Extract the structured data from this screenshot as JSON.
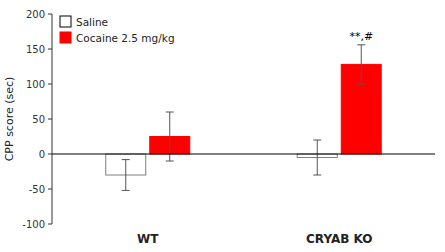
{
  "chart_data": {
    "type": "bar",
    "categories": [
      "WT",
      "CRYAB KO"
    ],
    "series": [
      {
        "name": "Saline",
        "color": "#ffffff",
        "values": [
          -30,
          -5
        ],
        "errors": [
          22,
          25
        ]
      },
      {
        "name": "Cocaine 2.5 mg/kg",
        "color": "#ff0000",
        "values": [
          25,
          128
        ],
        "errors": [
          35,
          28
        ]
      }
    ],
    "ylabel": "CPP score (sec)",
    "ylim": [
      -100,
      200
    ],
    "yticks": [
      -100,
      -50,
      0,
      50,
      100,
      150,
      200
    ],
    "annotations": [
      {
        "text": "**,#",
        "category": "CRYAB KO",
        "series": "Cocaine 2.5 mg/kg"
      }
    ],
    "legend": "upper left",
    "grid": false
  }
}
